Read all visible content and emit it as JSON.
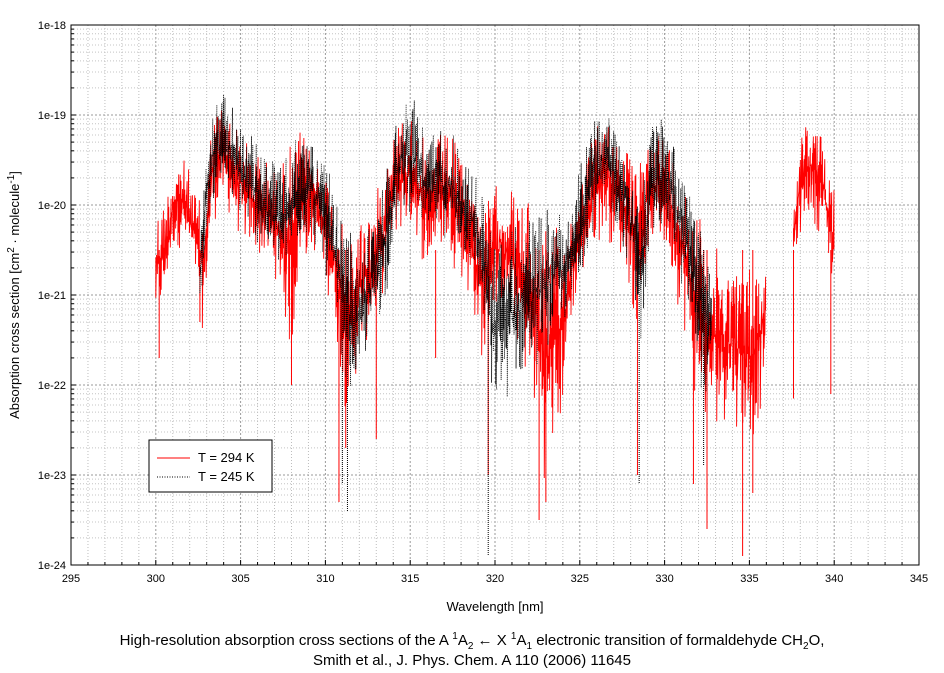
{
  "chart_data": {
    "type": "line",
    "xlabel": "Wavelength [nm]",
    "ylabel": {
      "main": "Absorption cross section [cm",
      "sup1": "2",
      "middle": " · molecule",
      "sup2": "-1",
      "end": "]"
    },
    "xlim": [
      295,
      345
    ],
    "ylim_log10": [
      -24,
      -18
    ],
    "x_ticks": [
      295,
      300,
      305,
      310,
      315,
      320,
      325,
      330,
      335,
      340,
      345
    ],
    "x_tick_labels": [
      "295",
      "300",
      "305",
      "310",
      "315",
      "320",
      "325",
      "330",
      "335",
      "340",
      "345"
    ],
    "y_ticks_log10": [
      -18,
      -19,
      -20,
      -21,
      -22,
      -23,
      -24
    ],
    "y_tick_labels": [
      "1e-18",
      "1e-19",
      "1e-20",
      "1e-21",
      "1e-22",
      "1e-23",
      "1e-24"
    ],
    "grid": true,
    "legend_position": "lower-left",
    "series": [
      {
        "name": "T = 294  K",
        "color": "#ff0000",
        "style": "solid",
        "envelope": {
          "x": [
            300.0,
            300.5,
            301.0,
            301.5,
            302.0,
            302.5,
            302.8,
            303.3,
            303.8,
            304.3,
            304.8,
            305.5,
            306.3,
            307.2,
            308.0,
            308.5,
            309.3,
            310.0,
            310.6,
            311.0,
            311.4,
            312.0,
            313.0,
            314.0,
            314.6,
            315.3,
            316.0,
            316.6,
            317.3,
            318.0,
            318.7,
            319.4,
            319.8,
            320.3,
            321.0,
            321.7,
            322.4,
            323.0,
            323.8,
            324.6,
            325.5,
            326.3,
            327.0,
            327.7,
            328.4,
            329.0,
            329.6,
            330.3,
            331.0,
            331.8,
            332.5,
            333.3,
            334.0,
            334.8,
            335.5,
            336.0
          ],
          "upper_log10": [
            -19.95,
            -19.9,
            -19.5,
            -19.4,
            -19.6,
            -19.9,
            -20.0,
            -19.0,
            -18.8,
            -18.9,
            -19.1,
            -19.3,
            -19.4,
            -19.6,
            -19.2,
            -19.15,
            -19.35,
            -19.55,
            -19.85,
            -20.2,
            -20.3,
            -20.05,
            -19.85,
            -19.1,
            -18.9,
            -18.95,
            -19.4,
            -19.2,
            -19.15,
            -19.4,
            -19.7,
            -20.0,
            -19.8,
            -19.7,
            -19.75,
            -19.9,
            -20.0,
            -20.15,
            -20.25,
            -19.9,
            -19.35,
            -18.95,
            -19.05,
            -19.3,
            -19.6,
            -19.2,
            -19.05,
            -19.25,
            -19.55,
            -19.9,
            -20.35,
            -20.5,
            -20.55,
            -20.6,
            -20.55,
            -20.6
          ],
          "lower_log10": [
            -21.5,
            -21.2,
            -20.6,
            -20.5,
            -20.7,
            -21.1,
            -21.5,
            -20.3,
            -20.1,
            -20.2,
            -20.4,
            -20.6,
            -20.7,
            -20.9,
            -22.0,
            -20.8,
            -20.6,
            -20.9,
            -21.5,
            -22.2,
            -22.5,
            -21.8,
            -21.4,
            -20.5,
            -20.4,
            -20.4,
            -20.9,
            -20.6,
            -20.6,
            -20.9,
            -21.3,
            -22.0,
            -21.3,
            -21.2,
            -21.4,
            -22.0,
            -22.6,
            -23.2,
            -22.8,
            -21.3,
            -20.7,
            -20.4,
            -20.5,
            -20.8,
            -21.5,
            -20.6,
            -20.5,
            -20.8,
            -21.3,
            -22.3,
            -22.7,
            -22.5,
            -22.4,
            -22.8,
            -22.6,
            -21.8
          ]
        },
        "segment2": {
          "x": [
            337.6,
            338.0,
            338.5,
            339.0,
            339.5,
            340.0
          ],
          "upper_log10": [
            -19.9,
            -19.2,
            -18.95,
            -19.1,
            -19.3,
            -19.6
          ],
          "lower_log10": [
            -20.8,
            -20.4,
            -20.2,
            -20.3,
            -20.5,
            -21.3
          ]
        },
        "dips": [
          {
            "x": 300.2,
            "log10": -21.7
          },
          {
            "x": 302.6,
            "log10": -21.3
          },
          {
            "x": 308.0,
            "log10": -22.0
          },
          {
            "x": 310.8,
            "log10": -23.3
          },
          {
            "x": 311.2,
            "log10": -22.7
          },
          {
            "x": 313.0,
            "log10": -22.6
          },
          {
            "x": 316.5,
            "log10": -21.7
          },
          {
            "x": 319.6,
            "log10": -23.0
          },
          {
            "x": 322.6,
            "log10": -23.5
          },
          {
            "x": 323.0,
            "log10": -23.3
          },
          {
            "x": 328.4,
            "log10": -23.0
          },
          {
            "x": 331.7,
            "log10": -23.1
          },
          {
            "x": 332.5,
            "log10": -23.6
          },
          {
            "x": 334.6,
            "log10": -23.9
          },
          {
            "x": 335.2,
            "log10": -23.2
          },
          {
            "x": 337.6,
            "log10": -22.15
          },
          {
            "x": 339.8,
            "log10": -22.1
          }
        ]
      },
      {
        "name": "T = 245 K",
        "color": "#000000",
        "style": "dotted",
        "envelope": {
          "x": [
            302.6,
            303.0,
            303.5,
            304.0,
            304.6,
            305.3,
            306.0,
            306.8,
            307.5,
            308.2,
            309.0,
            309.8,
            310.5,
            311.0,
            311.5,
            312.0,
            313.5,
            314.2,
            314.8,
            315.5,
            316.0,
            316.6,
            317.3,
            318.0,
            318.8,
            319.5,
            319.8,
            324.6,
            325.3,
            326.0,
            326.8,
            327.5,
            328.2,
            328.6,
            329.2,
            329.8,
            330.5,
            331.2,
            332.0,
            332.8
          ],
          "upper_log10": [
            -20.2,
            -19.4,
            -18.8,
            -18.75,
            -18.9,
            -19.1,
            -19.3,
            -19.45,
            -19.55,
            -19.25,
            -19.15,
            -19.4,
            -19.8,
            -20.1,
            -20.3,
            -20.6,
            -19.6,
            -18.95,
            -18.75,
            -18.85,
            -19.2,
            -19.05,
            -19.1,
            -19.3,
            -19.6,
            -19.9,
            -20.3,
            -19.9,
            -19.3,
            -18.95,
            -18.9,
            -19.2,
            -19.5,
            -19.9,
            -19.15,
            -18.95,
            -19.2,
            -19.6,
            -20.1,
            -20.5
          ],
          "lower_log10": [
            -21.3,
            -20.3,
            -19.95,
            -19.9,
            -20.1,
            -20.3,
            -20.5,
            -20.7,
            -20.9,
            -20.6,
            -20.4,
            -20.7,
            -21.2,
            -21.8,
            -22.3,
            -22.0,
            -21.2,
            -20.3,
            -20.1,
            -20.2,
            -20.6,
            -20.4,
            -20.4,
            -20.6,
            -20.9,
            -21.6,
            -22.5,
            -21.3,
            -20.6,
            -20.2,
            -20.2,
            -20.5,
            -21.0,
            -21.8,
            -20.6,
            -20.3,
            -20.6,
            -21.2,
            -22.0,
            -22.5
          ]
        },
        "dips": [
          {
            "x": 311.0,
            "log10": -23.1
          },
          {
            "x": 311.3,
            "log10": -23.4
          },
          {
            "x": 319.6,
            "log10": -23.9
          },
          {
            "x": 328.5,
            "log10": -23.1
          },
          {
            "x": 332.3,
            "log10": -22.9
          }
        ]
      }
    ]
  },
  "caption": {
    "line1_part1": "High-resolution absorption cross sections of the A ",
    "line1_sup1": "1",
    "line1_part2": "A",
    "line1_sub1": "2",
    "line1_arrow": " ← X ",
    "line1_sup2": "1",
    "line1_part3": "A",
    "line1_sub2": "1",
    "line1_part4": " electronic transition of formaldehyde CH",
    "line1_sub3": "2",
    "line1_part5": "O,",
    "line2": "Smith et al.,  J. Phys. Chem. A 110 (2006) 11645"
  }
}
